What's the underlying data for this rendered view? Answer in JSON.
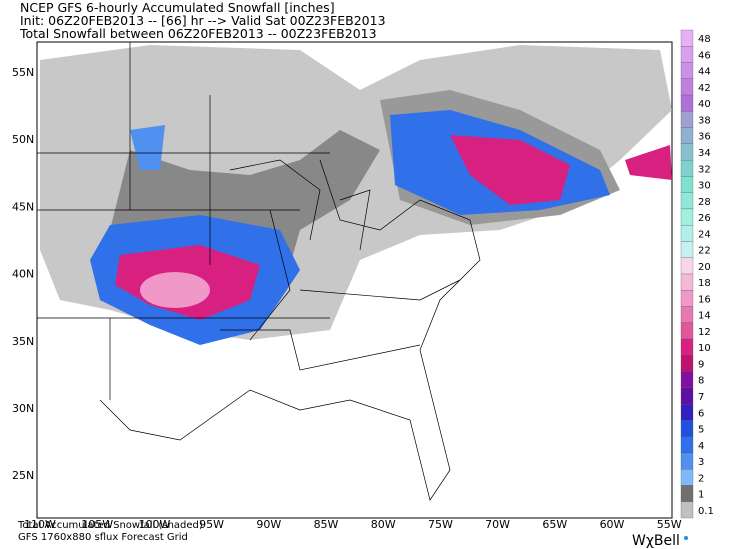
{
  "header": {
    "line1": "NCEP GFS 6-hourly Accumulated Snowfall [inches]",
    "line2": "Init: 06Z20FEB2013 -- [66] hr --> Valid Sat 00Z23FEB2013",
    "line3": "Total Snowfall between 06Z20FEB2013 -- 00Z23FEB2013"
  },
  "map": {
    "latitudes": [
      "55N",
      "50N",
      "45N",
      "40N",
      "35N",
      "30N",
      "25N"
    ],
    "longitudes": [
      "110W",
      "105W",
      "100W",
      "95W",
      "90W",
      "85W",
      "80W",
      "75W",
      "70W",
      "65W",
      "60W",
      "55W"
    ]
  },
  "colorbar": {
    "labels": [
      "48",
      "46",
      "44",
      "42",
      "40",
      "38",
      "36",
      "34",
      "32",
      "30",
      "28",
      "26",
      "24",
      "22",
      "20",
      "18",
      "16",
      "14",
      "12",
      "10",
      "9",
      "8",
      "7",
      "6",
      "5",
      "4",
      "3",
      "2",
      "1",
      "0.1"
    ],
    "colors": [
      "#e6b0f5",
      "#d9a0ef",
      "#cc90e8",
      "#bf80e0",
      "#b070d8",
      "#a0a0d0",
      "#90b0d0",
      "#88c0d0",
      "#80d0d0",
      "#80e0d0",
      "#90e8d8",
      "#a0f0e0",
      "#b0f0e8",
      "#c8f0f0",
      "#f8d8e8",
      "#f5b8d8",
      "#f098c8",
      "#e878b0",
      "#e05898",
      "#d82080",
      "#c01070",
      "#8010a0",
      "#6010a0",
      "#3020c0",
      "#2050e0",
      "#3070e8",
      "#5090f0",
      "#80b8f8",
      "#707070",
      "#c0c0c0"
    ]
  },
  "footer": {
    "line1": "Total Accumulated Snowfall (shaded)",
    "line2": "GFS 1760x880 sflux Forecast Grid",
    "logo": "WχBell"
  }
}
